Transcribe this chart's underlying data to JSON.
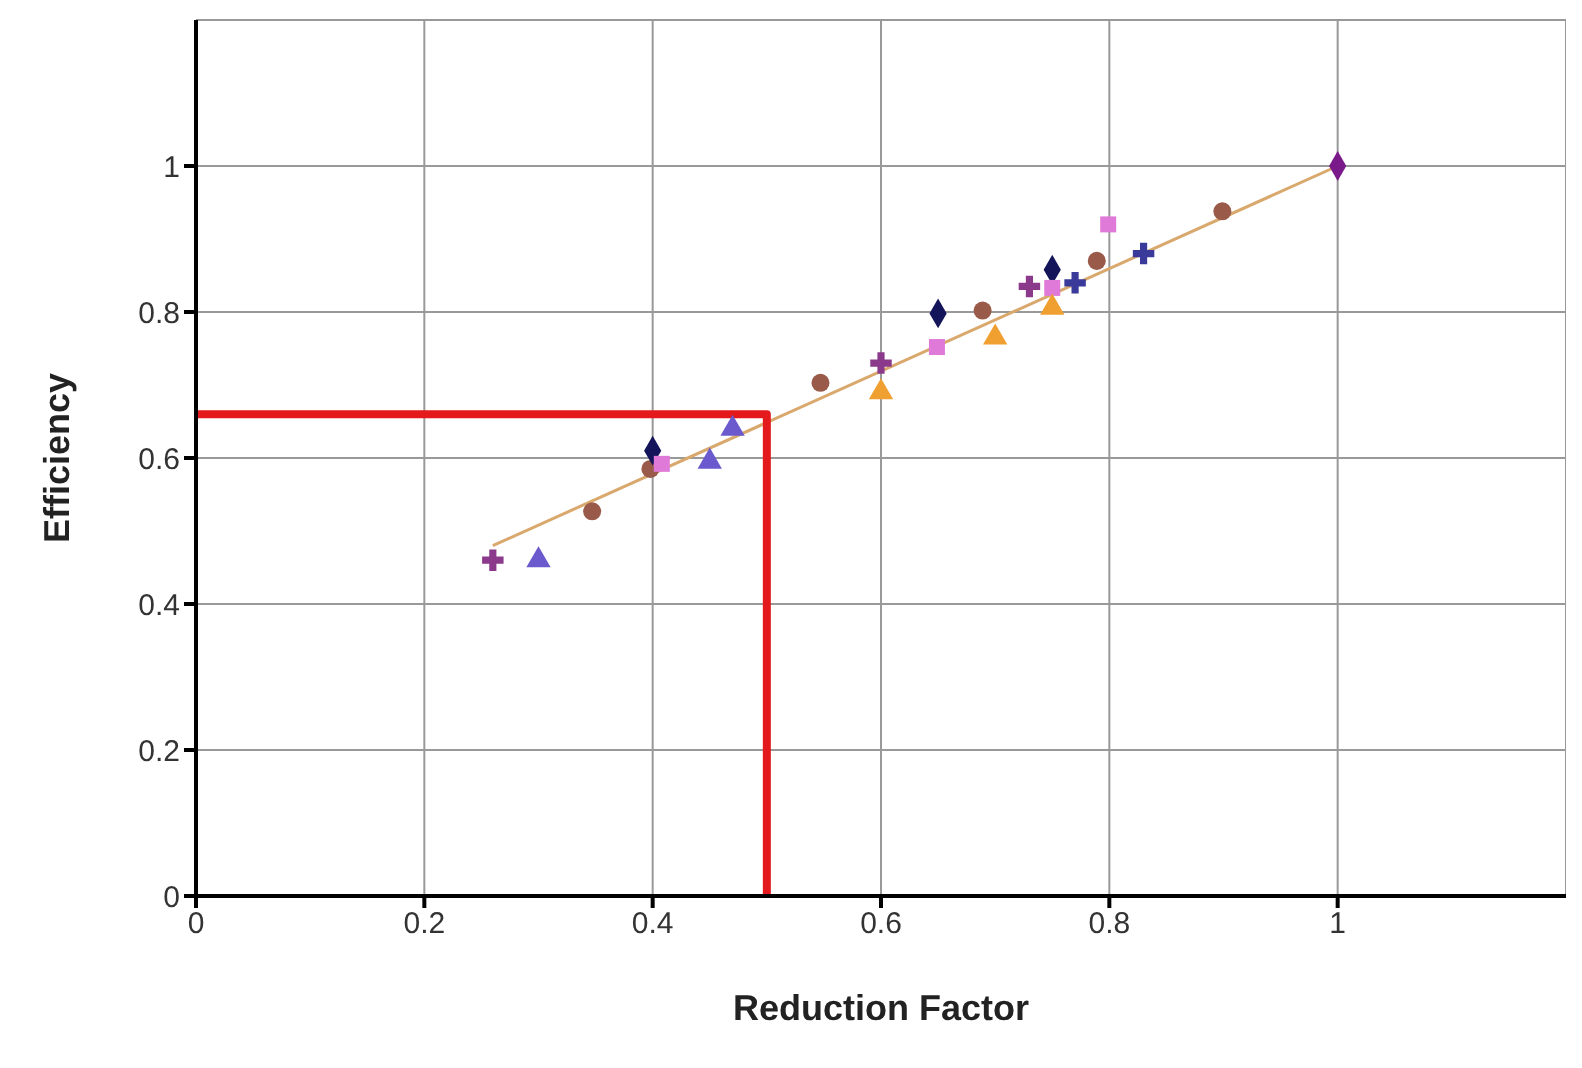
{
  "chart_data": {
    "type": "scatter",
    "xlabel": "Reduction Factor",
    "ylabel": "Efficiency",
    "xlim": [
      0,
      1.2
    ],
    "ylim": [
      0,
      1.2
    ],
    "xticks": [
      0,
      0.2,
      0.4,
      0.6,
      0.8,
      1
    ],
    "yticks": [
      0,
      0.2,
      0.4,
      0.6,
      0.8,
      1
    ],
    "grid": true,
    "series": [
      {
        "type": "line",
        "color": "#d9a86c",
        "marker": "none",
        "x": [
          0.26,
          1
        ],
        "values": [
          0.48,
          1
        ]
      },
      {
        "type": "line",
        "color": "#e3191c",
        "marker": "none",
        "x": [
          0,
          0.5,
          0.5
        ],
        "values": [
          0.66,
          0.66,
          0
        ]
      },
      {
        "color": "#8b3a8b",
        "marker": "cross",
        "x": [
          0.26,
          0.6,
          0.73
        ],
        "values": [
          0.46,
          0.73,
          0.835
        ]
      },
      {
        "color": "#3a3a9a",
        "marker": "cross",
        "x": [
          0.77,
          0.83
        ],
        "values": [
          0.84,
          0.88
        ]
      },
      {
        "color": "#6a5acd",
        "marker": "triangle",
        "x": [
          0.3,
          0.45,
          0.47
        ],
        "values": [
          0.46,
          0.595,
          0.64
        ]
      },
      {
        "color": "#9a5a4a",
        "marker": "circle",
        "x": [
          0.347,
          0.398,
          0.547,
          0.689,
          0.789,
          0.899
        ],
        "values": [
          0.527,
          0.585,
          0.703,
          0.802,
          0.87,
          0.938
        ]
      },
      {
        "color": "#14145a",
        "marker": "diamond",
        "x": [
          0.4,
          0.65,
          0.75
        ],
        "values": [
          0.61,
          0.798,
          0.858
        ]
      },
      {
        "color": "#e07ad8",
        "marker": "square",
        "x": [
          0.408,
          0.649,
          0.75,
          0.799
        ],
        "values": [
          0.592,
          0.752,
          0.833,
          0.92
        ]
      },
      {
        "color": "#f0a030",
        "marker": "triangle",
        "x": [
          0.6,
          0.7,
          0.75
        ],
        "values": [
          0.69,
          0.765,
          0.806
        ]
      },
      {
        "color": "#7a1a8a",
        "marker": "diamond",
        "x": [
          1
        ],
        "values": [
          1
        ]
      }
    ]
  }
}
